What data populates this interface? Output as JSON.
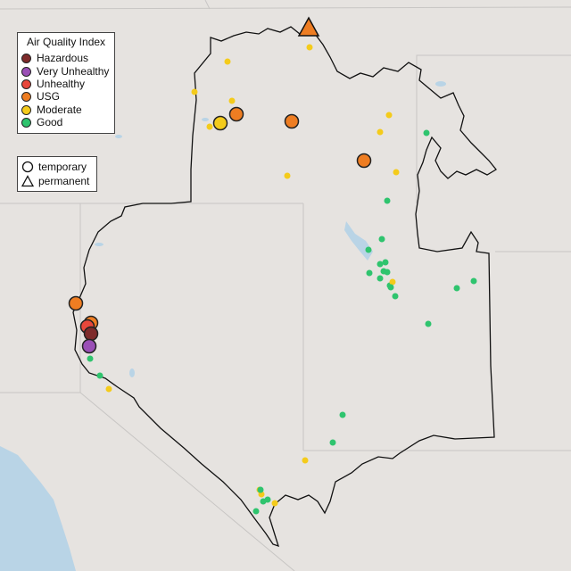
{
  "legend": {
    "title": "Air Quality Index",
    "categories": [
      {
        "label": "Hazardous",
        "color": "#7e2b2b"
      },
      {
        "label": "Very Unhealthy",
        "color": "#9a4fb6"
      },
      {
        "label": "Unhealthy",
        "color": "#e8473b"
      },
      {
        "label": "USG",
        "color": "#ee7d22"
      },
      {
        "label": "Moderate",
        "color": "#f4cb1b"
      },
      {
        "label": "Good",
        "color": "#2fc46e"
      }
    ],
    "types": [
      {
        "label": "temporary",
        "icon": "circle-icon"
      },
      {
        "label": "permanent",
        "icon": "triangle-icon"
      }
    ]
  },
  "colors": {
    "background": "#e6e3e0",
    "water": "#b9d4e6",
    "boundary": "#111111",
    "state_lines": "#c8c6c4"
  },
  "monitors": [
    {
      "aqi": "USG",
      "type": "permanent",
      "size": "large"
    },
    {
      "aqi": "Moderate",
      "type": "temporary",
      "size": "small"
    },
    {
      "aqi": "Moderate",
      "type": "temporary",
      "size": "small"
    },
    {
      "aqi": "Moderate",
      "type": "temporary",
      "size": "small"
    },
    {
      "aqi": "Moderate",
      "type": "temporary",
      "size": "small"
    },
    {
      "aqi": "USG",
      "type": "temporary",
      "size": "large"
    },
    {
      "aqi": "Moderate",
      "type": "temporary",
      "size": "large"
    },
    {
      "aqi": "Moderate",
      "type": "temporary",
      "size": "small"
    },
    {
      "aqi": "USG",
      "type": "temporary",
      "size": "large"
    },
    {
      "aqi": "Moderate",
      "type": "temporary",
      "size": "small"
    },
    {
      "aqi": "Moderate",
      "type": "temporary",
      "size": "small"
    },
    {
      "aqi": "USG",
      "type": "temporary",
      "size": "large"
    },
    {
      "aqi": "Moderate",
      "type": "temporary",
      "size": "small"
    },
    {
      "aqi": "Moderate",
      "type": "temporary",
      "size": "small"
    },
    {
      "aqi": "Good",
      "type": "temporary",
      "size": "small"
    },
    {
      "aqi": "Good",
      "type": "temporary",
      "size": "small"
    },
    {
      "aqi": "Good",
      "type": "temporary",
      "size": "small"
    },
    {
      "aqi": "Good",
      "type": "temporary",
      "size": "small"
    },
    {
      "aqi": "Good",
      "type": "temporary",
      "size": "small"
    },
    {
      "aqi": "Good",
      "type": "temporary",
      "size": "small"
    },
    {
      "aqi": "Good",
      "type": "temporary",
      "size": "small"
    },
    {
      "aqi": "Good",
      "type": "temporary",
      "size": "small"
    },
    {
      "aqi": "Good",
      "type": "temporary",
      "size": "small"
    },
    {
      "aqi": "Good",
      "type": "temporary",
      "size": "small"
    },
    {
      "aqi": "Good",
      "type": "temporary",
      "size": "small"
    },
    {
      "aqi": "Moderate",
      "type": "temporary",
      "size": "small"
    },
    {
      "aqi": "Good",
      "type": "temporary",
      "size": "small"
    },
    {
      "aqi": "Good",
      "type": "temporary",
      "size": "small"
    },
    {
      "aqi": "Good",
      "type": "temporary",
      "size": "small"
    },
    {
      "aqi": "Good",
      "type": "temporary",
      "size": "small"
    },
    {
      "aqi": "Good",
      "type": "temporary",
      "size": "small"
    },
    {
      "aqi": "Good",
      "type": "temporary",
      "size": "small"
    },
    {
      "aqi": "Good",
      "type": "temporary",
      "size": "small"
    },
    {
      "aqi": "Moderate",
      "type": "temporary",
      "size": "small"
    },
    {
      "aqi": "Moderate",
      "type": "temporary",
      "size": "small"
    },
    {
      "aqi": "Moderate",
      "type": "temporary",
      "size": "small"
    },
    {
      "aqi": "Good",
      "type": "temporary",
      "size": "small"
    },
    {
      "aqi": "Good",
      "type": "temporary",
      "size": "small"
    },
    {
      "aqi": "Good",
      "type": "temporary",
      "size": "small"
    },
    {
      "aqi": "Moderate",
      "type": "temporary",
      "size": "small"
    },
    {
      "aqi": "Good",
      "type": "temporary",
      "size": "small"
    },
    {
      "aqi": "USG",
      "type": "temporary",
      "size": "large"
    },
    {
      "aqi": "USG",
      "type": "temporary",
      "size": "large"
    },
    {
      "aqi": "Unhealthy",
      "type": "temporary",
      "size": "large"
    },
    {
      "aqi": "Hazardous",
      "type": "temporary",
      "size": "large"
    },
    {
      "aqi": "Very Unhealthy",
      "type": "temporary",
      "size": "large"
    },
    {
      "aqi": "Good",
      "type": "temporary",
      "size": "small"
    },
    {
      "aqi": "Moderate",
      "type": "temporary",
      "size": "small"
    },
    {
      "aqi": "Good",
      "type": "temporary",
      "size": "small"
    }
  ]
}
